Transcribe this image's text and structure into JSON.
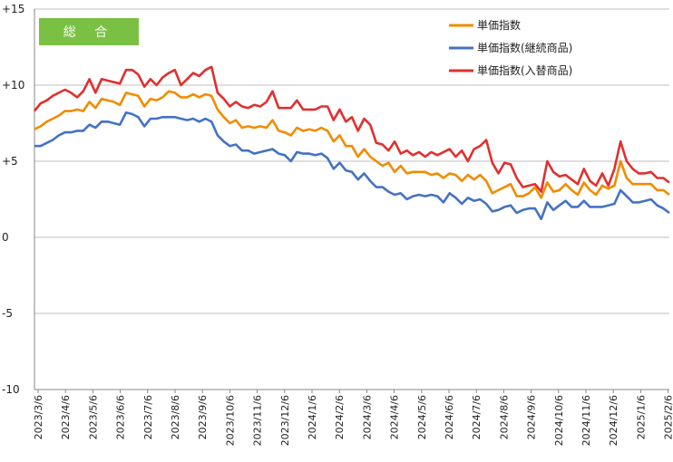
{
  "chart_data": {
    "type": "line",
    "badge": {
      "label": "総 合",
      "color": "#7ac143"
    },
    "ylim": [
      -10,
      15
    ],
    "yticks": [
      15,
      10,
      5,
      0,
      -5,
      -10
    ],
    "ytick_labels": [
      "+15",
      "+10",
      "+5",
      "0",
      "-5",
      "-10"
    ],
    "xtick_labels": [
      "2023/3/6",
      "2023/4/6",
      "2023/5/6",
      "2023/6/6",
      "2023/7/6",
      "2023/8/6",
      "2023/9/6",
      "2023/10/6",
      "2023/11/6",
      "2023/12/6",
      "2024/1/6",
      "2024/2/6",
      "2024/3/6",
      "2024/4/6",
      "2024/5/6",
      "2024/6/6",
      "2024/7/6",
      "2024/8/6",
      "2024/9/6",
      "2024/10/6",
      "2024/11/6",
      "2024/12/6",
      "2025/1/6",
      "2025/2/6"
    ],
    "grid": "horizontal",
    "legend_position": "top-right",
    "series": [
      {
        "name": "単価指数",
        "color": "#f08c00",
        "values": [
          7.1,
          7.3,
          7.6,
          7.8,
          8.0,
          8.3,
          8.3,
          8.4,
          8.3,
          8.9,
          8.5,
          9.1,
          9.0,
          8.9,
          8.7,
          9.5,
          9.4,
          9.3,
          8.6,
          9.1,
          9.0,
          9.2,
          9.6,
          9.5,
          9.2,
          9.2,
          9.4,
          9.2,
          9.4,
          9.3,
          8.4,
          7.9,
          7.5,
          7.7,
          7.2,
          7.3,
          7.2,
          7.3,
          7.2,
          7.7,
          7.0,
          6.9,
          6.7,
          7.2,
          7.0,
          7.1,
          7.0,
          7.2,
          7.0,
          6.3,
          6.7,
          6.0,
          6.0,
          5.3,
          5.8,
          5.3,
          5.0,
          4.7,
          4.9,
          4.3,
          4.7,
          4.2,
          4.3,
          4.3,
          4.3,
          4.1,
          4.2,
          3.9,
          4.2,
          4.1,
          3.7,
          4.1,
          3.8,
          4.1,
          3.7,
          2.9,
          3.1,
          3.3,
          3.5,
          2.7,
          2.7,
          2.9,
          3.3,
          2.6,
          3.6,
          3.0,
          3.1,
          3.5,
          3.1,
          2.8,
          3.6,
          3.1,
          2.8,
          3.4,
          3.2,
          3.4,
          5.0,
          3.9,
          3.5,
          3.5,
          3.5,
          3.5,
          3.1,
          3.1,
          2.8
        ]
      },
      {
        "name": "単価指数(継続商品)",
        "color": "#4472c4",
        "values": [
          6.0,
          6.0,
          6.2,
          6.4,
          6.7,
          6.9,
          6.9,
          7.0,
          7.0,
          7.4,
          7.2,
          7.6,
          7.6,
          7.5,
          7.4,
          8.2,
          8.1,
          7.9,
          7.3,
          7.8,
          7.8,
          7.9,
          7.9,
          7.9,
          7.8,
          7.7,
          7.8,
          7.6,
          7.8,
          7.6,
          6.7,
          6.3,
          6.0,
          6.1,
          5.7,
          5.7,
          5.5,
          5.6,
          5.7,
          5.8,
          5.5,
          5.4,
          5.0,
          5.6,
          5.5,
          5.5,
          5.4,
          5.5,
          5.2,
          4.5,
          4.9,
          4.4,
          4.3,
          3.8,
          4.2,
          3.7,
          3.3,
          3.3,
          3.0,
          2.8,
          2.9,
          2.5,
          2.7,
          2.8,
          2.7,
          2.8,
          2.7,
          2.3,
          2.9,
          2.6,
          2.2,
          2.6,
          2.4,
          2.5,
          2.2,
          1.7,
          1.8,
          2.0,
          2.1,
          1.6,
          1.8,
          1.9,
          1.9,
          1.2,
          2.3,
          1.8,
          2.1,
          2.4,
          2.0,
          2.0,
          2.4,
          2.0,
          2.0,
          2.0,
          2.1,
          2.2,
          3.1,
          2.7,
          2.3,
          2.3,
          2.4,
          2.5,
          2.1,
          1.9,
          1.6
        ]
      },
      {
        "name": "単価指数(入替商品)",
        "color": "#e0302f",
        "values": [
          8.3,
          8.8,
          9.0,
          9.3,
          9.5,
          9.7,
          9.5,
          9.2,
          9.6,
          10.4,
          9.5,
          10.4,
          10.3,
          10.2,
          10.1,
          11.0,
          11.0,
          10.7,
          9.9,
          10.4,
          10.0,
          10.5,
          10.8,
          11.0,
          10.0,
          10.4,
          10.8,
          10.6,
          11.0,
          11.2,
          9.5,
          9.1,
          8.6,
          8.9,
          8.6,
          8.5,
          8.7,
          8.6,
          8.9,
          9.6,
          8.5,
          8.5,
          8.5,
          9.0,
          8.4,
          8.4,
          8.4,
          8.6,
          8.6,
          7.7,
          8.4,
          7.6,
          7.9,
          7.0,
          7.8,
          7.4,
          6.2,
          6.1,
          5.7,
          6.3,
          5.5,
          5.7,
          5.4,
          5.6,
          5.3,
          5.6,
          5.4,
          5.6,
          5.8,
          5.3,
          5.7,
          5.0,
          5.8,
          6.0,
          6.4,
          4.9,
          4.2,
          4.9,
          4.8,
          3.9,
          3.3,
          3.4,
          3.5,
          3.0,
          5.0,
          4.3,
          4.0,
          4.1,
          3.8,
          3.5,
          4.5,
          3.7,
          3.4,
          4.2,
          3.4,
          4.5,
          6.3,
          5.0,
          4.5,
          4.2,
          4.2,
          4.3,
          3.9,
          3.9,
          3.6
        ]
      }
    ]
  }
}
